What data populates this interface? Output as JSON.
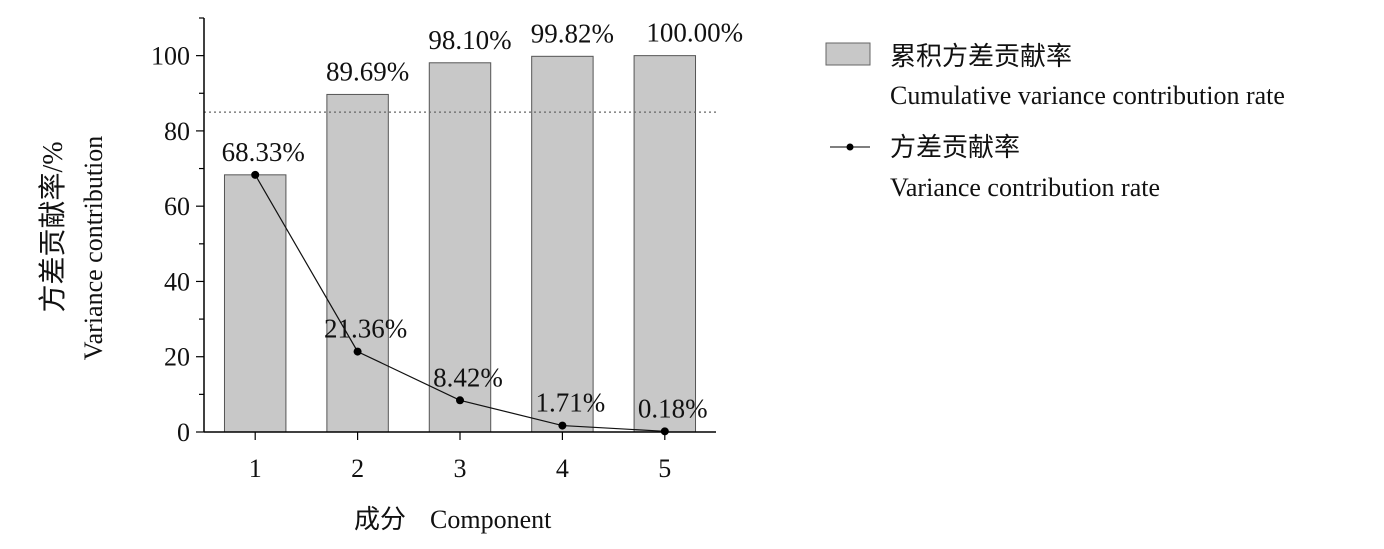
{
  "chart_data": {
    "type": "bar",
    "categories": [
      "1",
      "2",
      "3",
      "4",
      "5"
    ],
    "series": [
      {
        "name": "累积方差贡献率 Cumulative variance contribution rate",
        "kind": "bar",
        "values": [
          68.33,
          89.69,
          98.1,
          99.82,
          100.0
        ],
        "labels": [
          "",
          "89.69%",
          "98.10%",
          "99.82%",
          "100.00%"
        ],
        "color": "#c8c8c8"
      },
      {
        "name": "方差贡献率 Variance contribution rate",
        "kind": "line",
        "values": [
          68.33,
          21.36,
          8.42,
          1.71,
          0.18
        ],
        "labels": [
          "68.33%",
          "21.36%",
          "8.42%",
          "1.71%",
          "0.18%"
        ],
        "color": "#111111"
      }
    ],
    "threshold": 85,
    "ylim": [
      0,
      110
    ],
    "yticks": [
      "0",
      "20",
      "40",
      "60",
      "80",
      "100"
    ],
    "ylabel_cn": "方差贡献率/%",
    "ylabel_en": "Variance contribution",
    "xlabel_cn": "成分",
    "xlabel_en": "Component",
    "legend": {
      "placement": "right",
      "bar_cn": "累积方差贡献率",
      "bar_en": "Cumulative variance contribution rate",
      "line_cn": "方差贡献率",
      "line_en": "Variance contribution rate"
    }
  }
}
